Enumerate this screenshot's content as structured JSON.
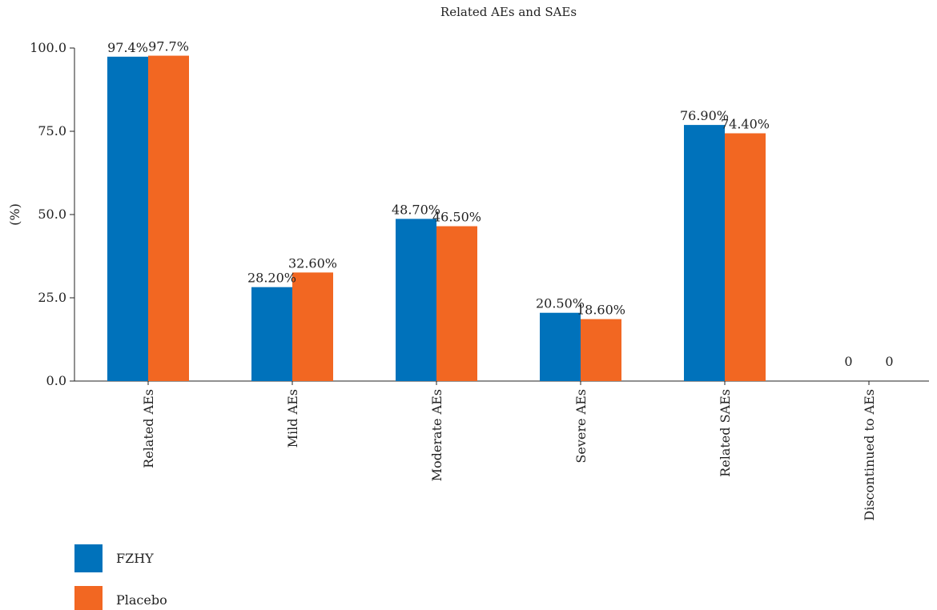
{
  "chart_data": {
    "type": "bar",
    "title": "Related AEs and SAEs",
    "ylabel": "(%)",
    "xlabel": "",
    "ylim": [
      0,
      100
    ],
    "yticks": [
      "0.0",
      "25.0",
      "50.0",
      "75.0",
      "100.0"
    ],
    "ytick_values": [
      0,
      25,
      50,
      75,
      100
    ],
    "grid": false,
    "legend_position": "bottom-left",
    "categories": [
      "Related AEs",
      "Mild AEs",
      "Moderate AEs",
      "Severe AEs",
      "Related SAEs",
      "Discontinued to AEs"
    ],
    "series": [
      {
        "name": "FZHY",
        "color": "#0072BB",
        "values": [
          97.4,
          28.2,
          48.7,
          20.5,
          76.9,
          0
        ],
        "labels": [
          "97.4%",
          "28.20%",
          "48.70%",
          "20.50%",
          "76.90%",
          "0"
        ]
      },
      {
        "name": "Placebo",
        "color": "#F26722",
        "values": [
          97.7,
          32.6,
          46.5,
          18.6,
          74.4,
          0
        ],
        "labels": [
          "97.7%",
          "32.60%",
          "46.50%",
          "18.60%",
          "74.40%",
          "0"
        ]
      }
    ]
  }
}
